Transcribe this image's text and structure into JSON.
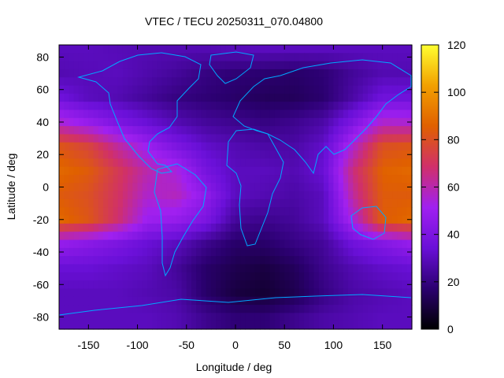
{
  "chart_data": {
    "type": "heatmap",
    "title": "VTEC / TECU 20250311_070.04800",
    "xlabel": "Longitude / deg",
    "ylabel": "Latitude / deg",
    "xlim": [
      -180,
      180
    ],
    "ylim": [
      -87.5,
      87.5
    ],
    "xticks": [
      -150,
      -100,
      -50,
      0,
      50,
      100,
      150
    ],
    "yticks": [
      -80,
      -60,
      -40,
      -20,
      0,
      20,
      40,
      60,
      80
    ],
    "colorbar": {
      "range": [
        0,
        120
      ],
      "ticks": [
        0,
        20,
        40,
        60,
        80,
        100,
        120
      ],
      "palette": [
        "#000000",
        "#2b0070",
        "#6a10d8",
        "#a020f0",
        "#d0306a",
        "#e06000",
        "#f2a000",
        "#ffff30"
      ]
    },
    "grid": false,
    "colors": {
      "coastlines": "#00a8ff"
    },
    "lon_nodes": [
      -180,
      -150,
      -120,
      -90,
      -60,
      -30,
      0,
      30,
      60,
      90,
      120,
      150,
      180
    ],
    "lat_nodes": [
      85,
      70,
      55,
      40,
      25,
      10,
      -5,
      -20,
      -35,
      -50,
      -65,
      -80
    ],
    "values": [
      [
        30,
        30,
        29,
        28,
        28,
        28,
        29,
        30,
        30,
        30,
        30,
        30,
        30
      ],
      [
        28,
        29,
        30,
        27,
        24,
        20,
        18,
        17,
        16,
        18,
        24,
        28,
        28
      ],
      [
        36,
        30,
        28,
        24,
        20,
        18,
        16,
        14,
        14,
        17,
        26,
        36,
        36
      ],
      [
        55,
        48,
        40,
        34,
        28,
        24,
        22,
        20,
        22,
        26,
        40,
        56,
        55
      ],
      [
        82,
        76,
        62,
        50,
        40,
        32,
        28,
        26,
        26,
        32,
        56,
        80,
        82
      ],
      [
        88,
        84,
        72,
        60,
        54,
        38,
        30,
        30,
        28,
        34,
        66,
        86,
        88
      ],
      [
        84,
        80,
        70,
        56,
        58,
        46,
        30,
        28,
        26,
        30,
        62,
        84,
        84
      ],
      [
        88,
        82,
        68,
        50,
        48,
        40,
        24,
        22,
        24,
        30,
        54,
        84,
        88
      ],
      [
        48,
        44,
        40,
        34,
        30,
        22,
        16,
        16,
        20,
        24,
        36,
        42,
        48
      ],
      [
        34,
        34,
        32,
        30,
        24,
        16,
        12,
        10,
        14,
        22,
        28,
        32,
        34
      ],
      [
        30,
        30,
        30,
        28,
        26,
        16,
        10,
        8,
        12,
        20,
        26,
        28,
        30
      ],
      [
        30,
        30,
        30,
        30,
        28,
        22,
        18,
        18,
        22,
        26,
        28,
        30,
        30
      ]
    ]
  }
}
